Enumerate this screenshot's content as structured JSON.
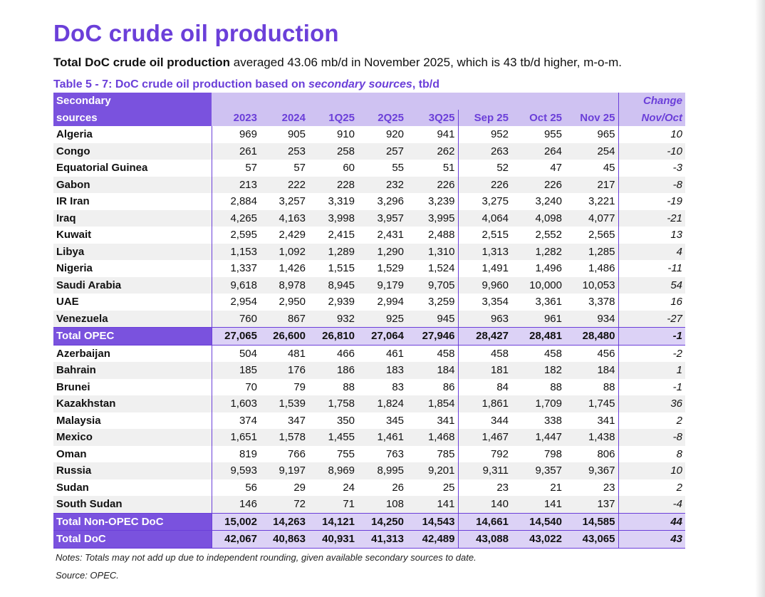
{
  "page": {
    "heading": "DoC crude oil production",
    "summary_bold": "Total DoC crude oil production",
    "summary_rest": " averaged 43.06 mb/d in November 2025, which is 43 tb/d higher, m-o-m.",
    "caption_prefix": "Table 5 - 7: DoC crude oil production based on ",
    "caption_italic": "secondary sources",
    "caption_suffix": ", tb/d",
    "notes": "Notes: Totals may not add up due to independent rounding, given available secondary sources to date.",
    "source": "Source: OPEC."
  },
  "table": {
    "corner_line1": "Secondary",
    "corner_line2": "sources",
    "change_line1": "Change",
    "change_line2": "Nov/Oct",
    "columns": [
      "2023",
      "2024",
      "1Q25",
      "2Q25",
      "3Q25",
      "Sep 25",
      "Oct 25",
      "Nov 25"
    ],
    "rows": [
      {
        "name": "Algeria",
        "values": [
          "969",
          "905",
          "910",
          "920",
          "941",
          "952",
          "955",
          "965"
        ],
        "change": "10"
      },
      {
        "name": "Congo",
        "values": [
          "261",
          "253",
          "258",
          "257",
          "262",
          "263",
          "264",
          "254"
        ],
        "change": "-10"
      },
      {
        "name": "Equatorial Guinea",
        "values": [
          "57",
          "57",
          "60",
          "55",
          "51",
          "52",
          "47",
          "45"
        ],
        "change": "-3"
      },
      {
        "name": "Gabon",
        "values": [
          "213",
          "222",
          "228",
          "232",
          "226",
          "226",
          "226",
          "217"
        ],
        "change": "-8"
      },
      {
        "name": "IR Iran",
        "values": [
          "2,884",
          "3,257",
          "3,319",
          "3,296",
          "3,239",
          "3,275",
          "3,240",
          "3,221"
        ],
        "change": "-19"
      },
      {
        "name": "Iraq",
        "values": [
          "4,265",
          "4,163",
          "3,998",
          "3,957",
          "3,995",
          "4,064",
          "4,098",
          "4,077"
        ],
        "change": "-21"
      },
      {
        "name": "Kuwait",
        "values": [
          "2,595",
          "2,429",
          "2,415",
          "2,431",
          "2,488",
          "2,515",
          "2,552",
          "2,565"
        ],
        "change": "13"
      },
      {
        "name": "Libya",
        "values": [
          "1,153",
          "1,092",
          "1,289",
          "1,290",
          "1,310",
          "1,313",
          "1,282",
          "1,285"
        ],
        "change": "4"
      },
      {
        "name": "Nigeria",
        "values": [
          "1,337",
          "1,426",
          "1,515",
          "1,529",
          "1,524",
          "1,491",
          "1,496",
          "1,486"
        ],
        "change": "-11"
      },
      {
        "name": "Saudi Arabia",
        "values": [
          "9,618",
          "8,978",
          "8,945",
          "9,179",
          "9,705",
          "9,960",
          "10,000",
          "10,053"
        ],
        "change": "54"
      },
      {
        "name": "UAE",
        "values": [
          "2,954",
          "2,950",
          "2,939",
          "2,994",
          "3,259",
          "3,354",
          "3,361",
          "3,378"
        ],
        "change": "16"
      },
      {
        "name": "Venezuela",
        "values": [
          "760",
          "867",
          "932",
          "925",
          "945",
          "963",
          "961",
          "934"
        ],
        "change": "-27"
      },
      {
        "name": "Total  OPEC",
        "values": [
          "27,065",
          "26,600",
          "26,810",
          "27,064",
          "27,946",
          "28,427",
          "28,481",
          "28,480"
        ],
        "change": "-1",
        "total": true
      },
      {
        "name": "Azerbaijan",
        "values": [
          "504",
          "481",
          "466",
          "461",
          "458",
          "458",
          "458",
          "456"
        ],
        "change": "-2"
      },
      {
        "name": "Bahrain",
        "values": [
          "185",
          "176",
          "186",
          "183",
          "184",
          "181",
          "182",
          "184"
        ],
        "change": "1"
      },
      {
        "name": "Brunei",
        "values": [
          "70",
          "79",
          "88",
          "83",
          "86",
          "84",
          "88",
          "88"
        ],
        "change": "-1"
      },
      {
        "name": "Kazakhstan",
        "values": [
          "1,603",
          "1,539",
          "1,758",
          "1,824",
          "1,854",
          "1,861",
          "1,709",
          "1,745"
        ],
        "change": "36"
      },
      {
        "name": "Malaysia",
        "values": [
          "374",
          "347",
          "350",
          "345",
          "341",
          "344",
          "338",
          "341"
        ],
        "change": "2"
      },
      {
        "name": "Mexico",
        "values": [
          "1,651",
          "1,578",
          "1,455",
          "1,461",
          "1,468",
          "1,467",
          "1,447",
          "1,438"
        ],
        "change": "-8"
      },
      {
        "name": "Oman",
        "values": [
          "819",
          "766",
          "755",
          "763",
          "785",
          "792",
          "798",
          "806"
        ],
        "change": "8"
      },
      {
        "name": "Russia",
        "values": [
          "9,593",
          "9,197",
          "8,969",
          "8,995",
          "9,201",
          "9,311",
          "9,357",
          "9,367"
        ],
        "change": "10"
      },
      {
        "name": "Sudan",
        "values": [
          "56",
          "29",
          "24",
          "26",
          "25",
          "23",
          "21",
          "23"
        ],
        "change": "2"
      },
      {
        "name": "South Sudan",
        "values": [
          "146",
          "72",
          "71",
          "108",
          "141",
          "140",
          "141",
          "137"
        ],
        "change": "-4"
      },
      {
        "name": "Total Non-OPEC DoC",
        "values": [
          "15,002",
          "14,263",
          "14,121",
          "14,250",
          "14,543",
          "14,661",
          "14,540",
          "14,585"
        ],
        "change": "44",
        "total": true
      },
      {
        "name": "Total DoC",
        "values": [
          "42,067",
          "40,863",
          "40,931",
          "41,313",
          "42,489",
          "43,088",
          "43,022",
          "43,065"
        ],
        "change": "43",
        "total": true
      }
    ]
  }
}
